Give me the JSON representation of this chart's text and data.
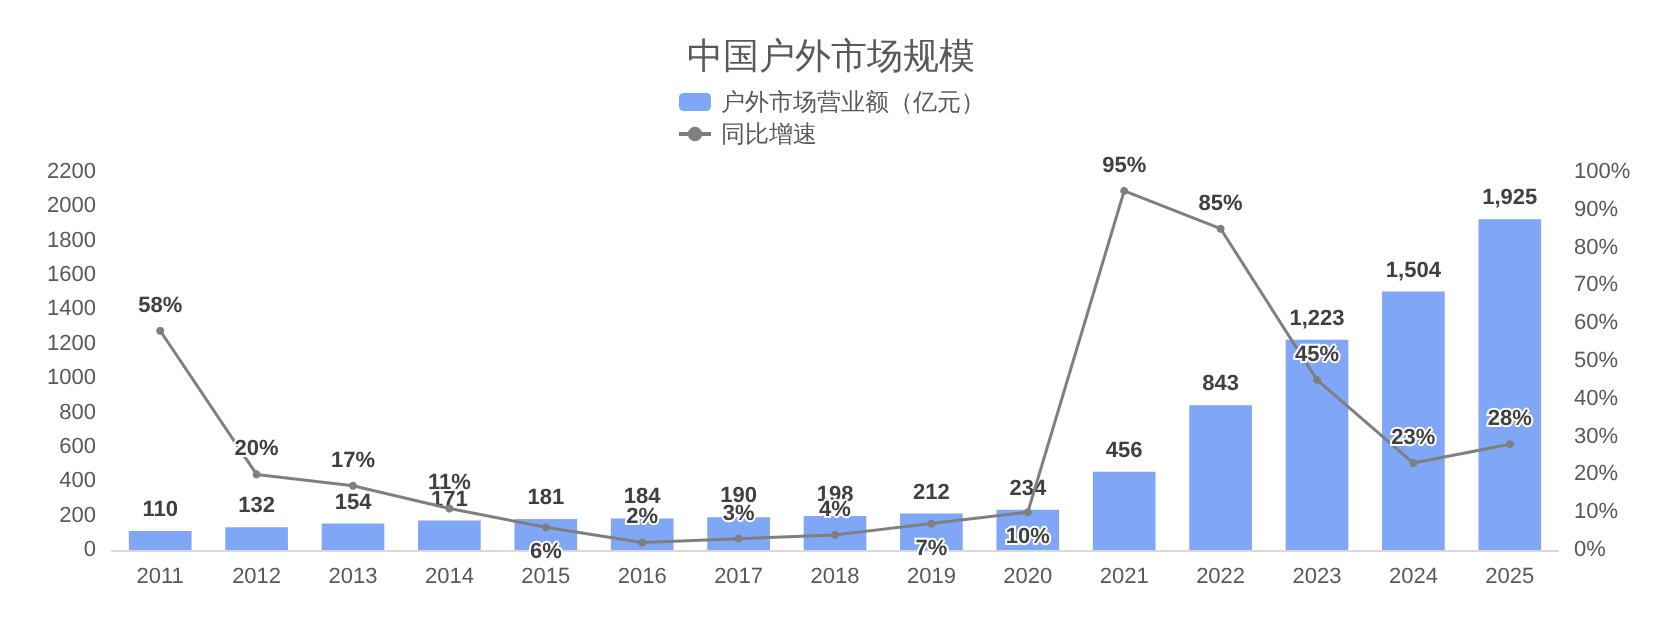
{
  "chart_data": {
    "type": "bar",
    "title": "中国户外市场规模",
    "categories": [
      "2011",
      "2012",
      "2013",
      "2014",
      "2015",
      "2016",
      "2017",
      "2018",
      "2019",
      "2020",
      "2021",
      "2022",
      "2023",
      "2024",
      "2025"
    ],
    "series": [
      {
        "name": "户外市场营业额（亿元）",
        "color": "#7fa7f5",
        "values": [
          110,
          132,
          154,
          171,
          181,
          184,
          190,
          198,
          212,
          234,
          456,
          843,
          1223,
          1504,
          1925
        ],
        "value_labels": [
          "110",
          "132",
          "154",
          "171",
          "181",
          "184",
          "190",
          "198",
          "212",
          "234",
          "456",
          "843",
          "1,223",
          "1,504",
          "1,925"
        ]
      },
      {
        "name": "同比增速",
        "type": "line",
        "axis": "y2",
        "color": "#7f7f7f",
        "marker": "circle",
        "values": [
          58,
          20,
          17,
          11,
          6,
          2,
          3,
          4,
          7,
          10,
          95,
          85,
          45,
          23,
          28
        ],
        "value_labels": [
          "58%",
          "20%",
          "17%",
          "11%",
          "6%",
          "2%",
          "3%",
          "4%",
          "7%",
          "10%",
          "95%",
          "85%",
          "45%",
          "23%",
          "28%"
        ]
      }
    ],
    "ylim": [
      0,
      2200
    ],
    "yticks": [
      0,
      200,
      400,
      600,
      800,
      1000,
      1200,
      1400,
      1600,
      1800,
      2000,
      2200
    ],
    "y2lim": [
      0,
      100
    ],
    "y2ticks": [
      {
        "value": 0,
        "label": "0%"
      },
      {
        "value": 10,
        "label": "10%"
      },
      {
        "value": 20,
        "label": "20%"
      },
      {
        "value": 30,
        "label": "30%"
      },
      {
        "value": 40,
        "label": "40%"
      },
      {
        "value": 50,
        "label": "50%"
      },
      {
        "value": 60,
        "label": "60%"
      },
      {
        "value": 70,
        "label": "70%"
      },
      {
        "value": 80,
        "label": "80%"
      },
      {
        "value": 90,
        "label": "90%"
      },
      {
        "value": 100,
        "label": "100%"
      }
    ],
    "legend": "top"
  }
}
